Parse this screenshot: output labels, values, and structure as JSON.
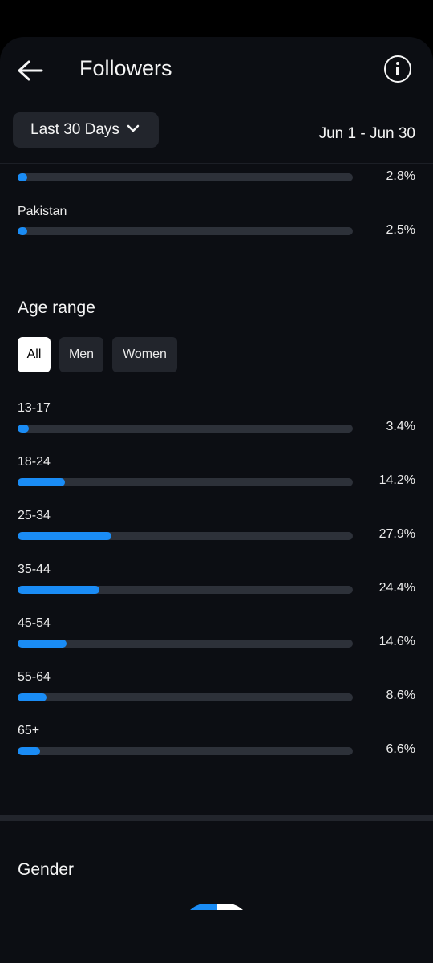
{
  "header": {
    "title": "Followers"
  },
  "filter": {
    "range_label": "Last 30 Days",
    "date_range": "Jun 1 - Jun 30"
  },
  "countries": [
    {
      "label": "",
      "percent_text": "2.8%",
      "value": 2.8
    },
    {
      "label": "Pakistan",
      "percent_text": "2.5%",
      "value": 2.5
    }
  ],
  "age": {
    "title": "Age range",
    "tabs": [
      {
        "label": "All",
        "active": true
      },
      {
        "label": "Men",
        "active": false
      },
      {
        "label": "Women",
        "active": false
      }
    ],
    "rows": [
      {
        "label": "13-17",
        "percent_text": "3.4%",
        "value": 3.4
      },
      {
        "label": "18-24",
        "percent_text": "14.2%",
        "value": 14.2
      },
      {
        "label": "25-34",
        "percent_text": "27.9%",
        "value": 27.9
      },
      {
        "label": "35-44",
        "percent_text": "24.4%",
        "value": 24.4
      },
      {
        "label": "45-54",
        "percent_text": "14.6%",
        "value": 14.6
      },
      {
        "label": "55-64",
        "percent_text": "8.6%",
        "value": 8.6
      },
      {
        "label": "65+",
        "percent_text": "6.6%",
        "value": 6.6
      }
    ]
  },
  "gender": {
    "title": "Gender"
  },
  "colors": {
    "accent": "#1a8cf5",
    "track": "#2d3139",
    "background": "#0c0e13"
  },
  "icons": {
    "back": "arrow-left-icon",
    "info": "info-circle-icon",
    "dropdown": "chevron-down-icon",
    "nav_recents": "square-icon",
    "nav_home": "circle-icon",
    "nav_back": "triangle-left-icon"
  }
}
